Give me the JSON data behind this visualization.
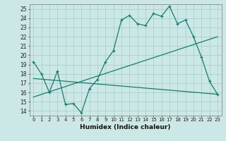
{
  "xlabel": "Humidex (Indice chaleur)",
  "xlim": [
    -0.5,
    23.5
  ],
  "ylim": [
    13.5,
    25.5
  ],
  "xticks": [
    0,
    1,
    2,
    3,
    4,
    5,
    6,
    7,
    8,
    9,
    10,
    11,
    12,
    13,
    14,
    15,
    16,
    17,
    18,
    19,
    20,
    21,
    22,
    23
  ],
  "yticks": [
    14,
    15,
    16,
    17,
    18,
    19,
    20,
    21,
    22,
    23,
    24,
    25
  ],
  "bg_color": "#cce8e6",
  "line_color": "#1a7a6e",
  "grid_color": "#aad4d0",
  "line1_x": [
    0,
    1,
    2,
    3,
    4,
    5,
    6,
    7,
    8,
    9,
    10,
    11,
    12,
    13,
    14,
    15,
    16,
    17,
    18,
    19,
    20,
    21,
    22,
    23
  ],
  "line1_y": [
    19.3,
    18.0,
    16.0,
    18.3,
    14.7,
    14.8,
    13.8,
    16.4,
    17.4,
    19.3,
    20.5,
    23.8,
    24.3,
    23.4,
    23.2,
    24.5,
    24.2,
    25.3,
    23.4,
    23.8,
    22.0,
    19.8,
    17.2,
    15.8
  ],
  "line2_x": [
    0,
    23
  ],
  "line2_y": [
    15.5,
    22.0
  ],
  "line3_x": [
    0,
    23
  ],
  "line3_y": [
    17.5,
    15.8
  ]
}
